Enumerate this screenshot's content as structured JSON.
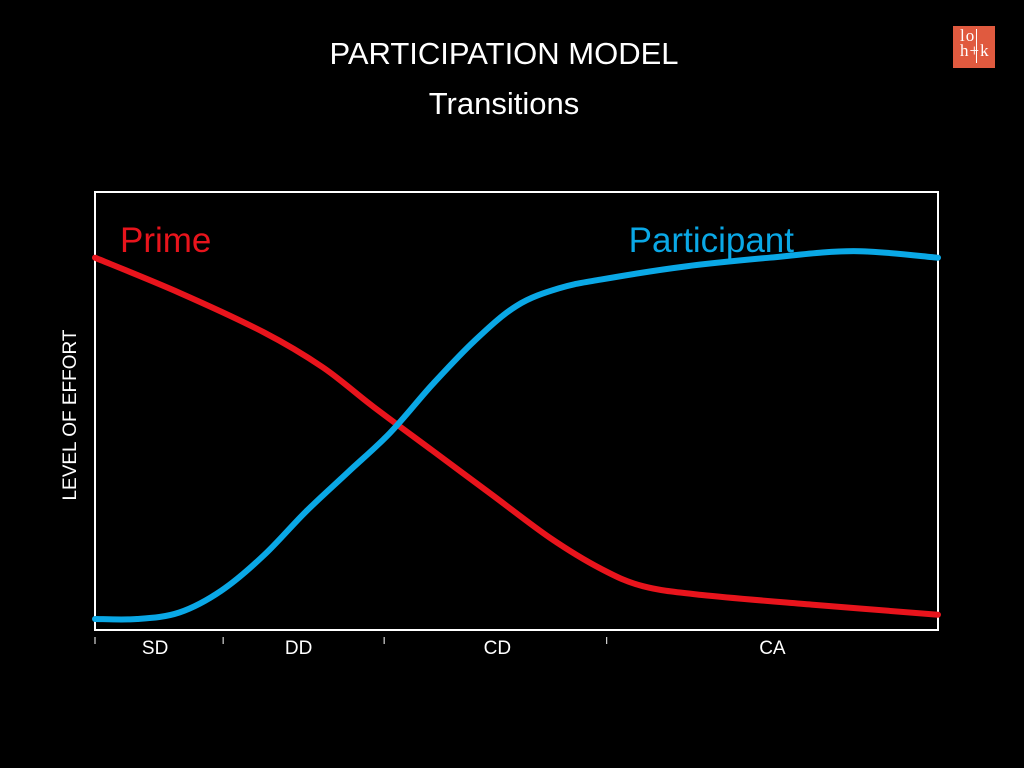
{
  "title": "PARTICIPATION MODEL",
  "subtitle": "Transitions",
  "logo": {
    "line1": "lo",
    "line2": "h+k"
  },
  "colors": {
    "background": "#000000",
    "prime": "#e8141c",
    "participant": "#0aa8e6",
    "frame": "#ffffff",
    "logo_bg": "#e05a3f"
  },
  "chart_data": {
    "type": "line",
    "title": "",
    "xlabel": "",
    "ylabel": "LEVEL OF EFFORT",
    "categories": [
      "SD",
      "DD",
      "CD",
      "CA"
    ],
    "category_bounds": [
      0,
      0.152,
      0.343,
      0.607,
      1
    ],
    "xlim": [
      0,
      1
    ],
    "ylim": [
      0,
      100
    ],
    "grid": false,
    "series": [
      {
        "name": "Prime",
        "color": "#e8141c",
        "x": [
          0,
          0.1,
          0.2,
          0.27,
          0.33,
          0.4,
          0.47,
          0.54,
          0.6,
          0.65,
          0.72,
          0.85,
          1
        ],
        "y": [
          85,
          77,
          68,
          60,
          51,
          41,
          31,
          21,
          14,
          10,
          8,
          5.8,
          3.5
        ]
      },
      {
        "name": "Participant",
        "color": "#0aa8e6",
        "x": [
          0,
          0.05,
          0.1,
          0.15,
          0.2,
          0.25,
          0.3,
          0.35,
          0.4,
          0.45,
          0.5,
          0.55,
          0.6,
          0.7,
          0.8,
          0.9,
          1
        ],
        "y": [
          2.5,
          2.5,
          4,
          9,
          17,
          27,
          36,
          45,
          56,
          66,
          74,
          78,
          80,
          83,
          85,
          86.5,
          85
        ]
      }
    ]
  }
}
